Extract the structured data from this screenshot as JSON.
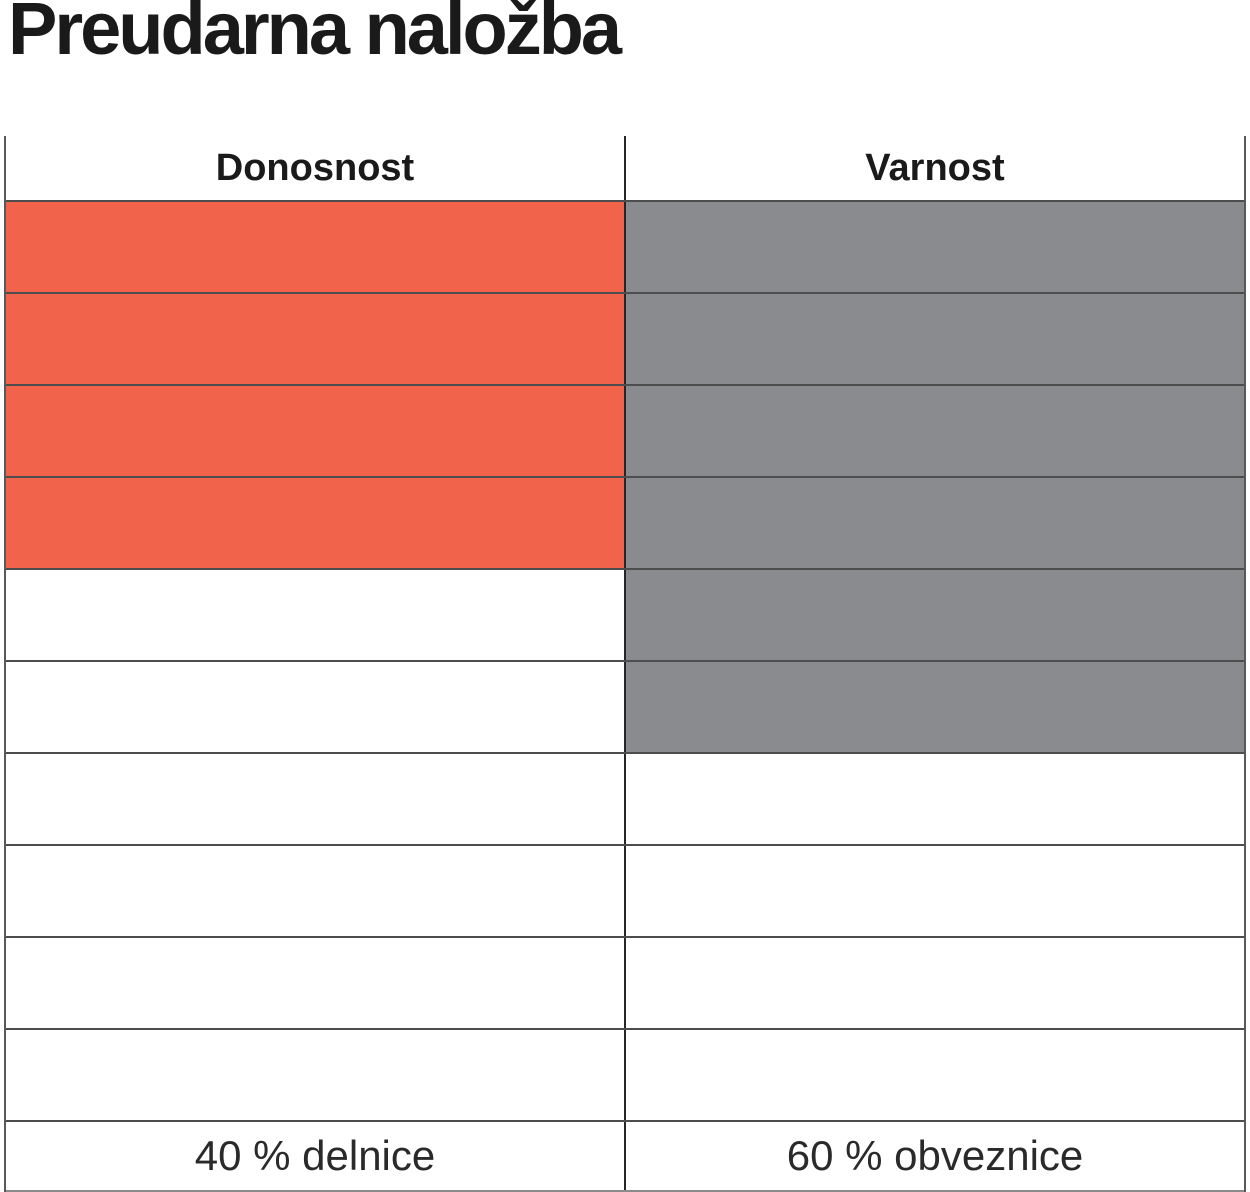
{
  "title": "Preudarna naložba",
  "table": {
    "columns": [
      {
        "header": "Donosnost",
        "footer": "40 % delnice",
        "filled_rows": 4,
        "fill_color": "#F2634B"
      },
      {
        "header": "Varnost",
        "footer": "60 % obveznice",
        "filled_rows": 6,
        "fill_color": "#898B8E"
      }
    ],
    "total_rows": 10
  },
  "chart_data": {
    "type": "bar",
    "variant": "cell-grid-rating",
    "title": "Preudarna naložba",
    "categories": [
      "Donosnost",
      "Varnost"
    ],
    "values": [
      4,
      6
    ],
    "max_cells": 10,
    "fill_direction": "top-down",
    "labels": [
      "40 % delnice",
      "60 % obveznice"
    ],
    "colors": [
      "#F2634B",
      "#898B8E"
    ],
    "grid": true,
    "legend": false
  }
}
